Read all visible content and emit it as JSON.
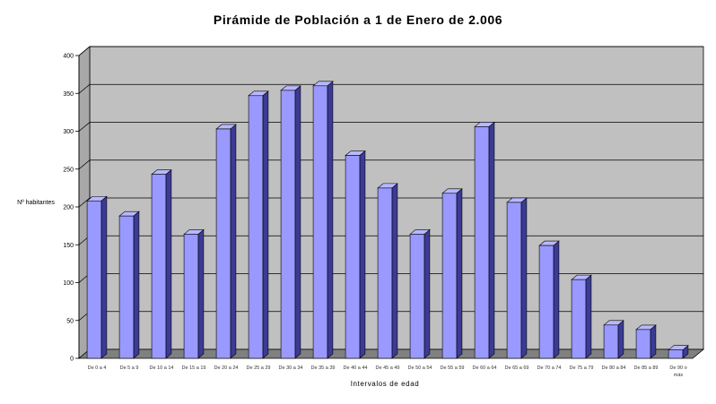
{
  "chart_data": {
    "type": "bar",
    "title": "Pirámide de Población a 1 de Enero de 2.006",
    "xlabel": "Intervalos de edad",
    "ylabel": "Nº habitantes",
    "ylim": [
      0,
      400
    ],
    "yticks": [
      0,
      50,
      100,
      150,
      200,
      250,
      300,
      350,
      400
    ],
    "grid": true,
    "categories": [
      "De 0 a 4",
      "De 5 a 9",
      "De 10 a 14",
      "De 15 a 19",
      "De 20 a 24",
      "De 25 a 29",
      "De 30 a 34",
      "De 35 a 39",
      "De 40 a 44",
      "De 45 a 49",
      "De 50 a 54",
      "De 55 a 59",
      "De 60 a 64",
      "De 65 a 69",
      "De 70 a 74",
      "De 75 a 79",
      "De 80 a 84",
      "De 85 a 89",
      "De 90 o más"
    ],
    "values": [
      208,
      188,
      243,
      164,
      303,
      347,
      354,
      360,
      268,
      225,
      164,
      218,
      306,
      206,
      149,
      104,
      44,
      38,
      11
    ],
    "colors": {
      "bar_front": "#9999ff",
      "bar_side": "#3b3b96",
      "bar_top": "#b8b8ff",
      "plot_back": "#c0c0c0",
      "plot_floor": "#808080"
    }
  }
}
